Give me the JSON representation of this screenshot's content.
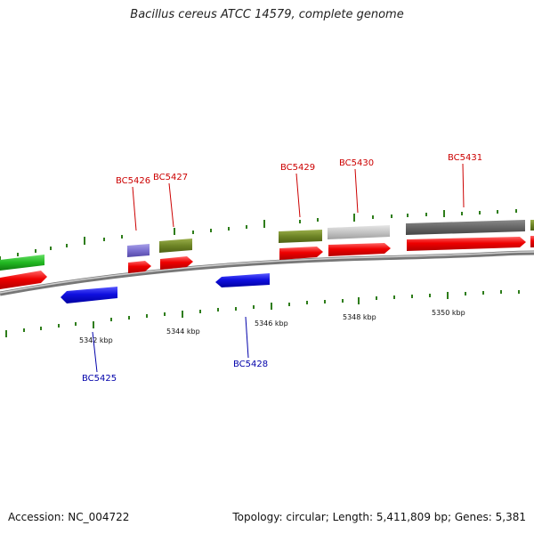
{
  "title": "Bacillus cereus ATCC 14579, complete genome",
  "footer": {
    "accession": "Accession: NC_004722",
    "summary": "Topology: circular; Length: 5,411,809 bp; Genes: 5,381"
  },
  "colors": {
    "forward_label": "#cc0000",
    "reverse_label": "#0000aa",
    "tick": "#2e7d1a",
    "backbone": "#888888"
  },
  "position_labels": [
    {
      "kbp": 5342,
      "text": "5342 kbp"
    },
    {
      "kbp": 5344,
      "text": "5344 kbp"
    },
    {
      "kbp": 5346,
      "text": "5346 kbp"
    },
    {
      "kbp": 5348,
      "text": "5348 kbp"
    },
    {
      "kbp": 5350,
      "text": "5350 kbp"
    }
  ],
  "labeled_genes": [
    {
      "id": "BC5425",
      "strand": "reverse"
    },
    {
      "id": "BC5426",
      "strand": "forward"
    },
    {
      "id": "BC5427",
      "strand": "forward"
    },
    {
      "id": "BC5428",
      "strand": "reverse"
    },
    {
      "id": "BC5429",
      "strand": "forward"
    },
    {
      "id": "BC5430",
      "strand": "forward"
    },
    {
      "id": "BC5431",
      "strand": "forward"
    }
  ]
}
